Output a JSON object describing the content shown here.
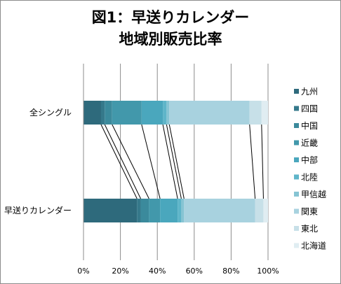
{
  "chart_data": {
    "type": "bar",
    "orientation": "horizontal",
    "stacked": "100%",
    "title_lines": [
      "図1：早送りカレンダー",
      "地域別販売比率"
    ],
    "categories": [
      "全シングル",
      "早送りカレンダー"
    ],
    "x_ticks": [
      "0%",
      "20%",
      "40%",
      "60%",
      "80%",
      "100%"
    ],
    "xlim": [
      0,
      100
    ],
    "grid": "vertical",
    "legend_position": "right",
    "series_lines": true,
    "series": [
      {
        "name": "九州",
        "color": "#2e6a7c",
        "values": [
          9.5,
          29
        ]
      },
      {
        "name": "四国",
        "color": "#35798b",
        "values": [
          2,
          2
        ]
      },
      {
        "name": "中国",
        "color": "#3b8a9c",
        "values": [
          4,
          4.5
        ]
      },
      {
        "name": "近畿",
        "color": "#4298ab",
        "values": [
          16,
          6
        ]
      },
      {
        "name": "中部",
        "color": "#4aa7bd",
        "values": [
          11.5,
          9.5
        ]
      },
      {
        "name": "北陸",
        "color": "#5fb5c9",
        "values": [
          2,
          2
        ]
      },
      {
        "name": "甲信越",
        "color": "#86c4d3",
        "values": [
          1.5,
          1.5
        ]
      },
      {
        "name": "関東",
        "color": "#a8d2df",
        "values": [
          43.5,
          38.5
        ]
      },
      {
        "name": "東北",
        "color": "#c7e0e8",
        "values": [
          6.5,
          4.5
        ]
      },
      {
        "name": "北海道",
        "color": "#e0edf2",
        "values": [
          3.5,
          2.5
        ]
      }
    ]
  }
}
